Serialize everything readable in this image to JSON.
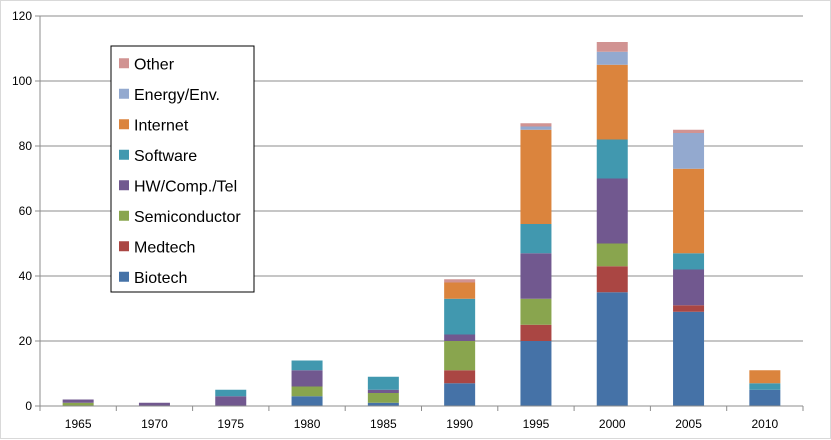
{
  "chart_data": {
    "type": "bar",
    "stacked": true,
    "title": "",
    "xlabel": "",
    "ylabel": "",
    "categories": [
      "1965",
      "1970",
      "1975",
      "1980",
      "1985",
      "1990",
      "1995",
      "2000",
      "2005",
      "2010"
    ],
    "ylim": [
      0,
      120
    ],
    "yticks": [
      0,
      20,
      40,
      60,
      80,
      100,
      120
    ],
    "grid": true,
    "legend_position": "top-left",
    "series": [
      {
        "name": "Biotech",
        "color": "#4572a7",
        "values": [
          0,
          0,
          0,
          3,
          1,
          7,
          20,
          35,
          29,
          5
        ]
      },
      {
        "name": "Medtech",
        "color": "#aa4643",
        "values": [
          0,
          0,
          0,
          0,
          0,
          4,
          5,
          8,
          2,
          0
        ]
      },
      {
        "name": "Semiconductor",
        "color": "#89a54e",
        "values": [
          1,
          0,
          0,
          3,
          3,
          9,
          8,
          7,
          0,
          0
        ]
      },
      {
        "name": "HW/Comp./Tel",
        "color": "#71588f",
        "values": [
          1,
          1,
          3,
          5,
          1,
          2,
          14,
          20,
          11,
          0
        ]
      },
      {
        "name": "Software",
        "color": "#4198af",
        "values": [
          0,
          0,
          2,
          3,
          4,
          11,
          9,
          12,
          5,
          2
        ]
      },
      {
        "name": "Internet",
        "color": "#db843d",
        "values": [
          0,
          0,
          0,
          0,
          0,
          5,
          29,
          23,
          26,
          4
        ]
      },
      {
        "name": "Energy/Env.",
        "color": "#93a9cf",
        "values": [
          0,
          0,
          0,
          0,
          0,
          0,
          1,
          4,
          11,
          0
        ]
      },
      {
        "name": "Other",
        "color": "#d19392",
        "values": [
          0,
          0,
          0,
          0,
          0,
          1,
          1,
          3,
          1,
          0
        ]
      }
    ]
  }
}
